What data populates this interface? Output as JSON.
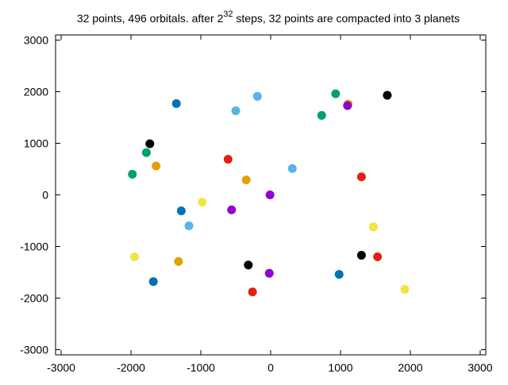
{
  "chart_data": {
    "type": "scatter",
    "title_parts": [
      "32 points, 496 orbitals. after 2",
      "32",
      " steps, 32 points are compacted into 3 planets"
    ],
    "xlim": [
      -3080,
      3080
    ],
    "ylim": [
      -3100,
      3100
    ],
    "xticks": [
      -3000,
      -2000,
      -1000,
      0,
      1000,
      2000,
      3000
    ],
    "yticks": [
      -3000,
      -2000,
      -1000,
      0,
      1000,
      2000,
      3000
    ],
    "series": [
      {
        "color": "#000000",
        "x": [
          1670,
          -1730,
          -320,
          1300
        ],
        "y": [
          1930,
          990,
          -1360,
          -1170
        ]
      },
      {
        "color": "#e69f00",
        "x": [
          1110,
          -1640,
          -350,
          -1320
        ],
        "y": [
          1760,
          560,
          290,
          -1290
        ]
      },
      {
        "color": "#9400d3",
        "x": [
          1100,
          -10,
          -560,
          -20
        ],
        "y": [
          1730,
          0,
          -290,
          -1520
        ]
      },
      {
        "color": "#009e73",
        "x": [
          930,
          730,
          -1780,
          -1980
        ],
        "y": [
          1960,
          1540,
          820,
          400
        ]
      },
      {
        "color": "#56b4e9",
        "x": [
          -190,
          -500,
          310,
          -1170
        ],
        "y": [
          1910,
          1630,
          510,
          -600
        ]
      },
      {
        "color": "#f0e442",
        "x": [
          -980,
          1470,
          -1950,
          1920
        ],
        "y": [
          -140,
          -620,
          -1200,
          -1830
        ]
      },
      {
        "color": "#0072b2",
        "x": [
          -1350,
          -1280,
          -1680,
          980
        ],
        "y": [
          1770,
          -310,
          -1680,
          -1540
        ]
      },
      {
        "color": "#e51e10",
        "x": [
          -610,
          1300,
          1530,
          -260
        ],
        "y": [
          690,
          350,
          -1200,
          -1880
        ]
      }
    ]
  }
}
